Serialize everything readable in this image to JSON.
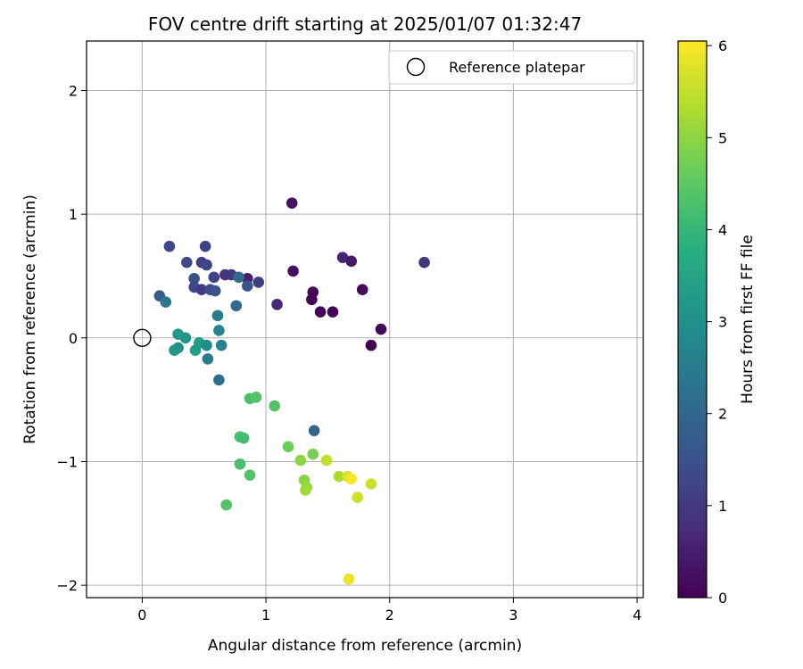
{
  "chart_data": {
    "type": "scatter",
    "title": "FOV centre drift starting at 2025/01/07 01:32:47",
    "xlabel": "Angular distance from reference (arcmin)",
    "ylabel": "Rotation from reference (arcmin)",
    "xlim": [
      -0.45,
      4.05
    ],
    "ylim": [
      -2.1,
      2.4
    ],
    "xticks": [
      0,
      1,
      2,
      3,
      4
    ],
    "yticks": [
      -2,
      -1,
      0,
      1,
      2
    ],
    "grid": true,
    "legend": {
      "placement": "top-right",
      "entries": [
        "Reference platepar"
      ]
    },
    "reference_point": {
      "x": 0,
      "y": 0
    },
    "colorbar": {
      "label": "Hours from first FF file",
      "colormap": "viridis",
      "range": [
        0,
        6.05
      ],
      "ticks": [
        0,
        1,
        2,
        3,
        4,
        5,
        6
      ]
    },
    "points": [
      {
        "x": 1.21,
        "y": 1.09,
        "c": 0.3
      },
      {
        "x": 1.22,
        "y": 0.54,
        "c": 0.2
      },
      {
        "x": 1.38,
        "y": 0.37,
        "c": 0.1
      },
      {
        "x": 1.37,
        "y": 0.31,
        "c": 0.1
      },
      {
        "x": 1.44,
        "y": 0.21,
        "c": 0.05
      },
      {
        "x": 1.54,
        "y": 0.21,
        "c": 0.05
      },
      {
        "x": 1.62,
        "y": 0.65,
        "c": 0.6
      },
      {
        "x": 1.69,
        "y": 0.62,
        "c": 0.4
      },
      {
        "x": 1.78,
        "y": 0.39,
        "c": 0.15
      },
      {
        "x": 1.93,
        "y": 0.07,
        "c": 0.1
      },
      {
        "x": 1.85,
        "y": -0.06,
        "c": 0.0
      },
      {
        "x": 2.28,
        "y": 0.61,
        "c": 0.9
      },
      {
        "x": 1.09,
        "y": 0.27,
        "c": 0.7
      },
      {
        "x": 0.85,
        "y": 0.48,
        "c": 0.5
      },
      {
        "x": 0.94,
        "y": 0.45,
        "c": 1.1
      },
      {
        "x": 0.85,
        "y": 0.42,
        "c": 1.6
      },
      {
        "x": 0.67,
        "y": 0.51,
        "c": 0.9
      },
      {
        "x": 0.72,
        "y": 0.51,
        "c": 1.0
      },
      {
        "x": 0.58,
        "y": 0.49,
        "c": 1.2
      },
      {
        "x": 0.22,
        "y": 0.74,
        "c": 1.3
      },
      {
        "x": 0.51,
        "y": 0.74,
        "c": 1.2
      },
      {
        "x": 0.48,
        "y": 0.61,
        "c": 1.1
      },
      {
        "x": 0.52,
        "y": 0.59,
        "c": 1.2
      },
      {
        "x": 0.36,
        "y": 0.61,
        "c": 1.4
      },
      {
        "x": 0.42,
        "y": 0.48,
        "c": 1.5
      },
      {
        "x": 0.42,
        "y": 0.41,
        "c": 1.3
      },
      {
        "x": 0.48,
        "y": 0.39,
        "c": 1.0
      },
      {
        "x": 0.55,
        "y": 0.39,
        "c": 1.3
      },
      {
        "x": 0.59,
        "y": 0.38,
        "c": 1.6
      },
      {
        "x": 0.78,
        "y": 0.49,
        "c": 2.1
      },
      {
        "x": 0.14,
        "y": 0.34,
        "c": 1.7
      },
      {
        "x": 0.19,
        "y": 0.29,
        "c": 2.4
      },
      {
        "x": 0.76,
        "y": 0.26,
        "c": 2.1
      },
      {
        "x": 0.61,
        "y": 0.18,
        "c": 2.5
      },
      {
        "x": 0.62,
        "y": 0.06,
        "c": 2.8
      },
      {
        "x": 0.29,
        "y": 0.03,
        "c": 3.3
      },
      {
        "x": 0.35,
        "y": 0.0,
        "c": 3.1
      },
      {
        "x": 0.46,
        "y": -0.04,
        "c": 3.4
      },
      {
        "x": 0.52,
        "y": -0.06,
        "c": 2.9
      },
      {
        "x": 0.64,
        "y": -0.06,
        "c": 2.7
      },
      {
        "x": 0.29,
        "y": -0.08,
        "c": 3.0
      },
      {
        "x": 0.26,
        "y": -0.1,
        "c": 3.2
      },
      {
        "x": 0.43,
        "y": -0.1,
        "c": 3.4
      },
      {
        "x": 0.53,
        "y": -0.17,
        "c": 2.5
      },
      {
        "x": 0.62,
        "y": -0.34,
        "c": 2.2
      },
      {
        "x": 0.87,
        "y": -0.49,
        "c": 4.3
      },
      {
        "x": 0.92,
        "y": -0.48,
        "c": 4.4
      },
      {
        "x": 1.07,
        "y": -0.55,
        "c": 4.4
      },
      {
        "x": 1.39,
        "y": -0.75,
        "c": 2.0
      },
      {
        "x": 0.79,
        "y": -0.8,
        "c": 4.3
      },
      {
        "x": 0.82,
        "y": -0.81,
        "c": 4.2
      },
      {
        "x": 1.18,
        "y": -0.88,
        "c": 4.7
      },
      {
        "x": 1.38,
        "y": -0.94,
        "c": 4.8
      },
      {
        "x": 1.28,
        "y": -0.99,
        "c": 5.0
      },
      {
        "x": 1.49,
        "y": -0.99,
        "c": 5.5
      },
      {
        "x": 0.79,
        "y": -1.02,
        "c": 4.3
      },
      {
        "x": 0.87,
        "y": -1.11,
        "c": 4.4
      },
      {
        "x": 1.59,
        "y": -1.12,
        "c": 5.3
      },
      {
        "x": 1.66,
        "y": -1.12,
        "c": 5.7
      },
      {
        "x": 1.69,
        "y": -1.14,
        "c": 6.0
      },
      {
        "x": 1.31,
        "y": -1.15,
        "c": 5.0
      },
      {
        "x": 1.85,
        "y": -1.18,
        "c": 5.6
      },
      {
        "x": 1.33,
        "y": -1.21,
        "c": 5.1
      },
      {
        "x": 1.32,
        "y": -1.23,
        "c": 5.2
      },
      {
        "x": 1.74,
        "y": -1.29,
        "c": 5.6
      },
      {
        "x": 0.68,
        "y": -1.35,
        "c": 4.4
      },
      {
        "x": 1.67,
        "y": -1.95,
        "c": 5.9
      }
    ]
  }
}
